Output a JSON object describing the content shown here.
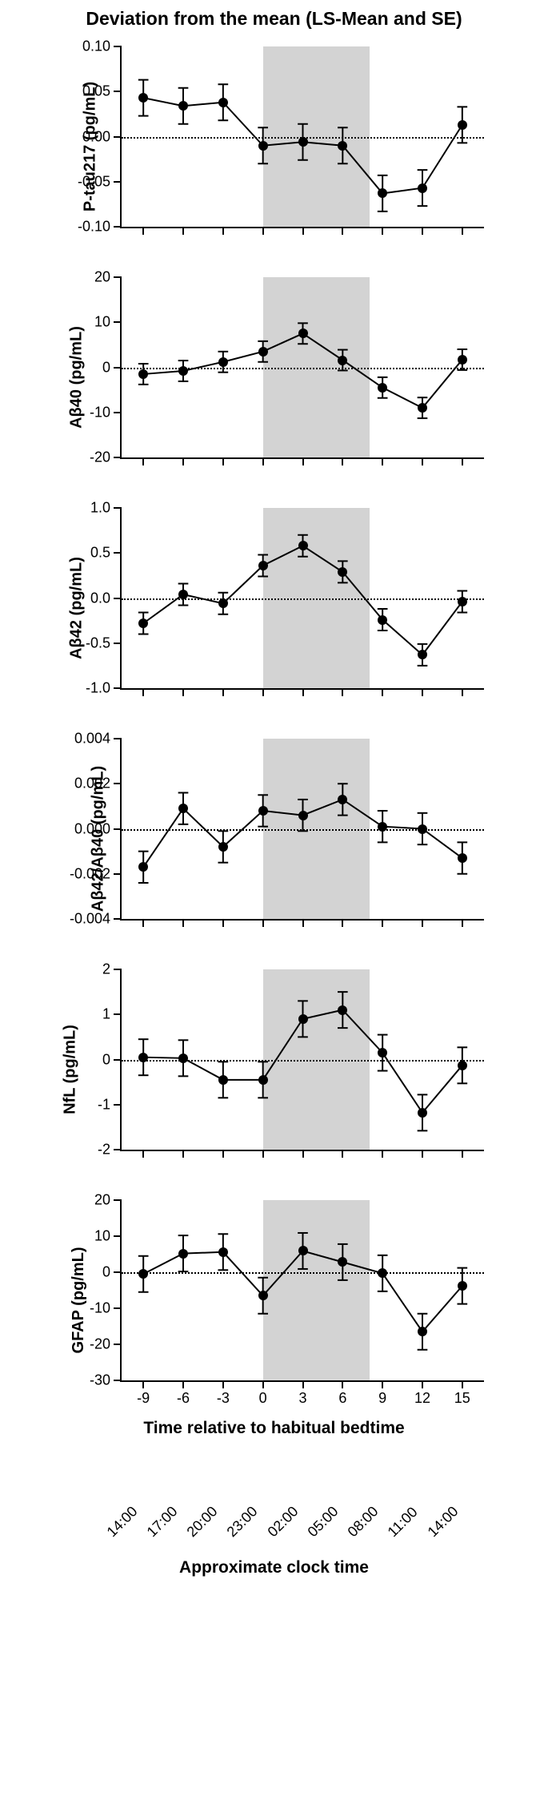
{
  "title": "Deviation from the mean (LS-Mean and SE)",
  "x_label_main": "Time relative to habitual bedtime",
  "clock_title": "Approximate clock time",
  "x_categories": [
    -9,
    -6,
    -3,
    0,
    3,
    6,
    9,
    12,
    15
  ],
  "clock_times": [
    "14:00",
    "17:00",
    "20:00",
    "23:00",
    "02:00",
    "05:00",
    "08:00",
    "11:00",
    "14:00"
  ],
  "shade_x_range": [
    0,
    8
  ],
  "point_color": "#000000",
  "line_color": "#000000",
  "line_width": 2,
  "marker_radius": 6,
  "error_cap_width": 10,
  "background_color": "#ffffff",
  "shade_color": "#d3d3d3",
  "panels": [
    {
      "id": "ptau217",
      "ylabel": "P-tau217 (pg/mL)",
      "ylim": [
        -0.1,
        0.1
      ],
      "yticks": [
        -0.1,
        -0.05,
        0.0,
        0.05,
        0.1
      ],
      "ytick_labels": [
        "-0.10",
        "-0.05",
        "0.00",
        "0.05",
        "0.10"
      ],
      "data": [
        {
          "y": 0.043,
          "se": 0.02
        },
        {
          "y": 0.034,
          "se": 0.02
        },
        {
          "y": 0.038,
          "se": 0.02
        },
        {
          "y": -0.01,
          "se": 0.02
        },
        {
          "y": -0.006,
          "se": 0.02
        },
        {
          "y": -0.01,
          "se": 0.02
        },
        {
          "y": -0.063,
          "se": 0.02
        },
        {
          "y": -0.057,
          "se": 0.02
        },
        {
          "y": 0.013,
          "se": 0.02
        }
      ]
    },
    {
      "id": "ab40",
      "ylabel": "Aβ40 (pg/mL)",
      "ylim": [
        -20,
        20
      ],
      "yticks": [
        -20,
        -10,
        0,
        10,
        20
      ],
      "ytick_labels": [
        "-20",
        "-10",
        "0",
        "10",
        "20"
      ],
      "data": [
        {
          "y": -1.5,
          "se": 2.3
        },
        {
          "y": -0.8,
          "se": 2.3
        },
        {
          "y": 1.2,
          "se": 2.3
        },
        {
          "y": 3.5,
          "se": 2.3
        },
        {
          "y": 7.5,
          "se": 2.3
        },
        {
          "y": 1.6,
          "se": 2.3
        },
        {
          "y": -4.5,
          "se": 2.3
        },
        {
          "y": -9.0,
          "se": 2.3
        },
        {
          "y": 1.7,
          "se": 2.3
        }
      ]
    },
    {
      "id": "ab42",
      "ylabel": "Aβ42 (pg/mL)",
      "ylim": [
        -1.0,
        1.0
      ],
      "yticks": [
        -1.0,
        -0.5,
        0.0,
        0.5,
        1.0
      ],
      "ytick_labels": [
        "-1.0",
        "-0.5",
        "0.0",
        "0.5",
        "1.0"
      ],
      "data": [
        {
          "y": -0.28,
          "se": 0.12
        },
        {
          "y": 0.04,
          "se": 0.12
        },
        {
          "y": -0.06,
          "se": 0.12
        },
        {
          "y": 0.36,
          "se": 0.12
        },
        {
          "y": 0.58,
          "se": 0.12
        },
        {
          "y": 0.29,
          "se": 0.12
        },
        {
          "y": -0.24,
          "se": 0.12
        },
        {
          "y": -0.63,
          "se": 0.12
        },
        {
          "y": -0.04,
          "se": 0.12
        }
      ]
    },
    {
      "id": "ab4240",
      "ylabel": "Aβ42/Aβ40 (pg/mL)",
      "ylim": [
        -0.004,
        0.004
      ],
      "yticks": [
        -0.004,
        -0.002,
        0.0,
        0.002,
        0.004
      ],
      "ytick_labels": [
        "-0.004",
        "-0.002",
        "0.000",
        "0.002",
        "0.004"
      ],
      "data": [
        {
          "y": -0.0017,
          "se": 0.0007
        },
        {
          "y": 0.0009,
          "se": 0.0007
        },
        {
          "y": -0.0008,
          "se": 0.0007
        },
        {
          "y": 0.0008,
          "se": 0.0007
        },
        {
          "y": 0.0006,
          "se": 0.0007
        },
        {
          "y": 0.0013,
          "se": 0.0007
        },
        {
          "y": 0.0001,
          "se": 0.0007
        },
        {
          "y": 0.0,
          "se": 0.0007
        },
        {
          "y": -0.0013,
          "se": 0.0007
        }
      ]
    },
    {
      "id": "nfl",
      "ylabel": "NfL (pg/mL)",
      "ylim": [
        -2,
        2
      ],
      "yticks": [
        -2,
        -1,
        0,
        1,
        2
      ],
      "ytick_labels": [
        "-2",
        "-1",
        "0",
        "1",
        "2"
      ],
      "data": [
        {
          "y": 0.05,
          "se": 0.4
        },
        {
          "y": 0.03,
          "se": 0.4
        },
        {
          "y": -0.45,
          "se": 0.4
        },
        {
          "y": -0.45,
          "se": 0.4
        },
        {
          "y": 0.9,
          "se": 0.4
        },
        {
          "y": 1.1,
          "se": 0.4
        },
        {
          "y": 0.15,
          "se": 0.4
        },
        {
          "y": -1.18,
          "se": 0.4
        },
        {
          "y": -0.13,
          "se": 0.4
        }
      ]
    },
    {
      "id": "gfap",
      "ylabel": "GFAP (pg/mL)",
      "ylim": [
        -30,
        20
      ],
      "yticks": [
        -30,
        -20,
        -10,
        0,
        10,
        20
      ],
      "ytick_labels": [
        "-30",
        "-20",
        "-10",
        "0",
        "10",
        "20"
      ],
      "data": [
        {
          "y": -0.5,
          "se": 5.0
        },
        {
          "y": 5.2,
          "se": 5.0
        },
        {
          "y": 5.6,
          "se": 5.0
        },
        {
          "y": -6.5,
          "se": 5.0
        },
        {
          "y": 5.9,
          "se": 5.0
        },
        {
          "y": 2.8,
          "se": 5.0
        },
        {
          "y": -0.3,
          "se": 5.0
        },
        {
          "y": -16.5,
          "se": 5.0
        },
        {
          "y": -3.8,
          "se": 5.0
        }
      ],
      "show_xlabels": true
    }
  ]
}
